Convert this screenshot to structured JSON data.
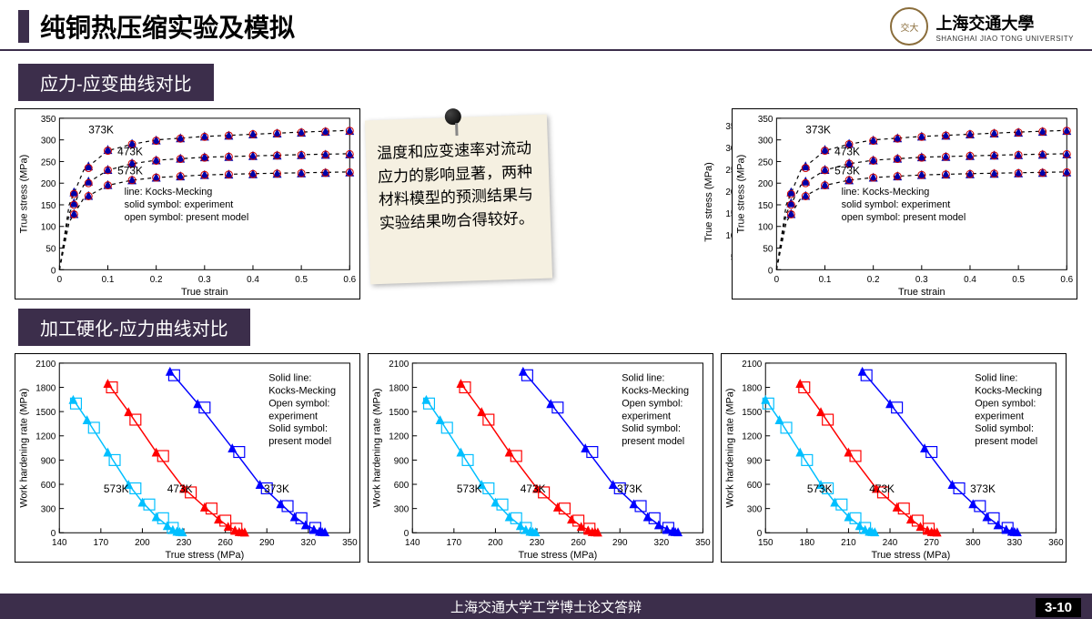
{
  "header": {
    "title": "纯铜热压缩实验及模拟",
    "uni_cn": "上海交通大學",
    "uni_en": "SHANGHAI JIAO TONG UNIVERSITY",
    "logo_text": "交大"
  },
  "section1_title": "应力-应变曲线对比",
  "section2_title": "加工硬化-应力曲线对比",
  "note_text": "温度和应变速率对流动应力的影响显著，两种材料模型的预测结果与实验结果吻合得较好。",
  "footer_text": "上海交通大学工学博士论文答辩",
  "page_num": "3-10",
  "stress_strain": {
    "type": "line",
    "xlabel": "True strain",
    "ylabel": "True stress (MPa)",
    "xlim": [
      0,
      0.6
    ],
    "ylim": [
      0,
      350
    ],
    "xticks": [
      0,
      0.1,
      0.2,
      0.3,
      0.4,
      0.5,
      0.6
    ],
    "yticks": [
      0,
      50,
      100,
      150,
      200,
      250,
      300,
      350
    ],
    "label_fontsize": 11,
    "tick_fontsize": 10,
    "background_color": "#ffffff",
    "grid": false,
    "legend_lines": [
      "line:          Kocks-Mecking",
      "solid symbol:  experiment",
      "open symbol:  present model"
    ],
    "curve_labels": [
      "373K",
      "473K",
      "573K"
    ],
    "series": [
      {
        "name": "373K-line",
        "type": "line",
        "color": "#000000",
        "dash": "4,4",
        "width": 1.2,
        "x": [
          0,
          0.02,
          0.05,
          0.1,
          0.15,
          0.2,
          0.3,
          0.4,
          0.5,
          0.6
        ],
        "y": [
          0,
          150,
          230,
          275,
          290,
          300,
          308,
          313,
          318,
          322
        ]
      },
      {
        "name": "373K-exp",
        "type": "marker",
        "marker": "triangle-solid",
        "color": "#0000aa",
        "size": 5,
        "x": [
          0.03,
          0.06,
          0.1,
          0.15,
          0.2,
          0.25,
          0.3,
          0.35,
          0.4,
          0.45,
          0.5,
          0.55,
          0.6
        ],
        "y": [
          180,
          240,
          278,
          292,
          300,
          305,
          309,
          311,
          314,
          316,
          318,
          320,
          322
        ]
      },
      {
        "name": "373K-model",
        "type": "marker",
        "marker": "circle-open",
        "color": "#cc0000",
        "size": 4,
        "x": [
          0.03,
          0.06,
          0.1,
          0.15,
          0.2,
          0.25,
          0.3,
          0.35,
          0.4,
          0.45,
          0.5,
          0.55,
          0.6
        ],
        "y": [
          175,
          235,
          275,
          290,
          298,
          303,
          307,
          310,
          313,
          315,
          317,
          319,
          321
        ]
      },
      {
        "name": "473K-line",
        "type": "line",
        "color": "#000000",
        "dash": "4,4",
        "width": 1.2,
        "x": [
          0,
          0.02,
          0.05,
          0.1,
          0.15,
          0.2,
          0.3,
          0.4,
          0.5,
          0.6
        ],
        "y": [
          0,
          130,
          195,
          230,
          245,
          253,
          260,
          263,
          266,
          268
        ]
      },
      {
        "name": "473K-exp",
        "type": "marker",
        "marker": "triangle-solid",
        "color": "#0000aa",
        "size": 5,
        "x": [
          0.03,
          0.06,
          0.1,
          0.15,
          0.2,
          0.25,
          0.3,
          0.35,
          0.4,
          0.45,
          0.5,
          0.55,
          0.6
        ],
        "y": [
          155,
          205,
          232,
          247,
          254,
          258,
          261,
          262,
          264,
          265,
          266,
          267,
          268
        ]
      },
      {
        "name": "473K-model",
        "type": "marker",
        "marker": "circle-open",
        "color": "#cc0000",
        "size": 4,
        "x": [
          0.03,
          0.06,
          0.1,
          0.15,
          0.2,
          0.25,
          0.3,
          0.35,
          0.4,
          0.45,
          0.5,
          0.55,
          0.6
        ],
        "y": [
          150,
          200,
          230,
          245,
          252,
          256,
          259,
          261,
          263,
          264,
          265,
          266,
          267
        ]
      },
      {
        "name": "573K-line",
        "type": "line",
        "color": "#000000",
        "dash": "4,4",
        "width": 1.2,
        "x": [
          0,
          0.02,
          0.05,
          0.1,
          0.15,
          0.2,
          0.3,
          0.4,
          0.5,
          0.6
        ],
        "y": [
          0,
          110,
          165,
          195,
          207,
          213,
          219,
          222,
          224,
          226
        ]
      },
      {
        "name": "573K-exp",
        "type": "marker",
        "marker": "triangle-solid",
        "color": "#0000aa",
        "size": 5,
        "x": [
          0.03,
          0.06,
          0.1,
          0.15,
          0.2,
          0.25,
          0.3,
          0.35,
          0.4,
          0.45,
          0.5,
          0.55,
          0.6
        ],
        "y": [
          130,
          172,
          197,
          208,
          214,
          217,
          220,
          221,
          222,
          223,
          224,
          225,
          226
        ]
      },
      {
        "name": "573K-model",
        "type": "marker",
        "marker": "circle-open",
        "color": "#cc0000",
        "size": 4,
        "x": [
          0.03,
          0.06,
          0.1,
          0.15,
          0.2,
          0.25,
          0.3,
          0.35,
          0.4,
          0.45,
          0.5,
          0.55,
          0.6
        ],
        "y": [
          128,
          170,
          195,
          207,
          213,
          216,
          219,
          220,
          221,
          222,
          223,
          224,
          225
        ]
      }
    ]
  },
  "hardening": {
    "type": "line",
    "xlabel": "True stress (MPa)",
    "ylabel": "Work hardening rate (MPa)",
    "xlim_a": [
      140,
      350
    ],
    "xlim_c": [
      150,
      360
    ],
    "ylim": [
      0,
      2100
    ],
    "xticks_a": [
      140,
      170,
      200,
      230,
      260,
      290,
      320,
      350
    ],
    "xticks_c": [
      150,
      180,
      210,
      240,
      270,
      300,
      330,
      360
    ],
    "yticks": [
      0,
      300,
      600,
      900,
      1200,
      1500,
      1800,
      2100
    ],
    "label_fontsize": 11,
    "tick_fontsize": 10,
    "background_color": "#ffffff",
    "legend_lines": [
      "Solid line:",
      "Kocks-Mecking",
      "Open symbol:",
      "experiment",
      "Solid symbol:",
      "present model"
    ],
    "curve_labels": [
      "573K",
      "473K",
      "373K"
    ],
    "colors": {
      "573K": "#00bfff",
      "473K": "#ff0000",
      "373K": "#0000ff"
    },
    "series": [
      {
        "name": "573K-line",
        "type": "line",
        "color": "#00bfff",
        "width": 1.5,
        "x": [
          150,
          160,
          175,
          190,
          200,
          210,
          218,
          222,
          225
        ],
        "y": [
          1650,
          1400,
          1000,
          600,
          380,
          200,
          90,
          40,
          20
        ]
      },
      {
        "name": "573K-open",
        "type": "marker",
        "marker": "square-open",
        "color": "#00bfff",
        "size": 6,
        "x": [
          152,
          165,
          180,
          195,
          205,
          215,
          222
        ],
        "y": [
          1600,
          1300,
          900,
          550,
          350,
          180,
          60
        ]
      },
      {
        "name": "573K-solid",
        "type": "marker",
        "marker": "triangle-solid",
        "color": "#00bfff",
        "size": 5,
        "x": [
          150,
          160,
          175,
          190,
          200,
          210,
          218,
          222,
          225,
          227,
          229
        ],
        "y": [
          1650,
          1400,
          1000,
          600,
          380,
          200,
          90,
          40,
          20,
          15,
          12
        ]
      },
      {
        "name": "473K-line",
        "type": "line",
        "color": "#ff0000",
        "width": 1.5,
        "x": [
          175,
          190,
          210,
          230,
          245,
          255,
          262,
          267,
          270
        ],
        "y": [
          1850,
          1500,
          1000,
          550,
          320,
          170,
          80,
          35,
          15
        ]
      },
      {
        "name": "473K-open",
        "type": "marker",
        "marker": "square-open",
        "color": "#ff0000",
        "size": 6,
        "x": [
          178,
          195,
          215,
          235,
          250,
          260,
          268
        ],
        "y": [
          1800,
          1400,
          950,
          500,
          300,
          150,
          50
        ]
      },
      {
        "name": "473K-solid",
        "type": "marker",
        "marker": "triangle-solid",
        "color": "#ff0000",
        "size": 5,
        "x": [
          175,
          190,
          210,
          230,
          245,
          255,
          262,
          267,
          270,
          272,
          274
        ],
        "y": [
          1850,
          1500,
          1000,
          550,
          320,
          170,
          80,
          35,
          15,
          12,
          10
        ]
      },
      {
        "name": "373K-line",
        "type": "line",
        "color": "#0000ff",
        "width": 1.5,
        "x": [
          220,
          240,
          265,
          285,
          300,
          310,
          318,
          324,
          328
        ],
        "y": [
          2000,
          1600,
          1050,
          600,
          360,
          200,
          100,
          45,
          20
        ]
      },
      {
        "name": "373K-open",
        "type": "marker",
        "marker": "square-open",
        "color": "#0000ff",
        "size": 6,
        "x": [
          223,
          245,
          270,
          290,
          305,
          315,
          325
        ],
        "y": [
          1950,
          1550,
          1000,
          550,
          330,
          180,
          60
        ]
      },
      {
        "name": "373K-solid",
        "type": "marker",
        "marker": "triangle-solid",
        "color": "#0000ff",
        "size": 5,
        "x": [
          220,
          240,
          265,
          285,
          300,
          310,
          318,
          324,
          328,
          330,
          332
        ],
        "y": [
          2000,
          1600,
          1050,
          600,
          360,
          200,
          100,
          45,
          20,
          15,
          12
        ]
      }
    ]
  }
}
